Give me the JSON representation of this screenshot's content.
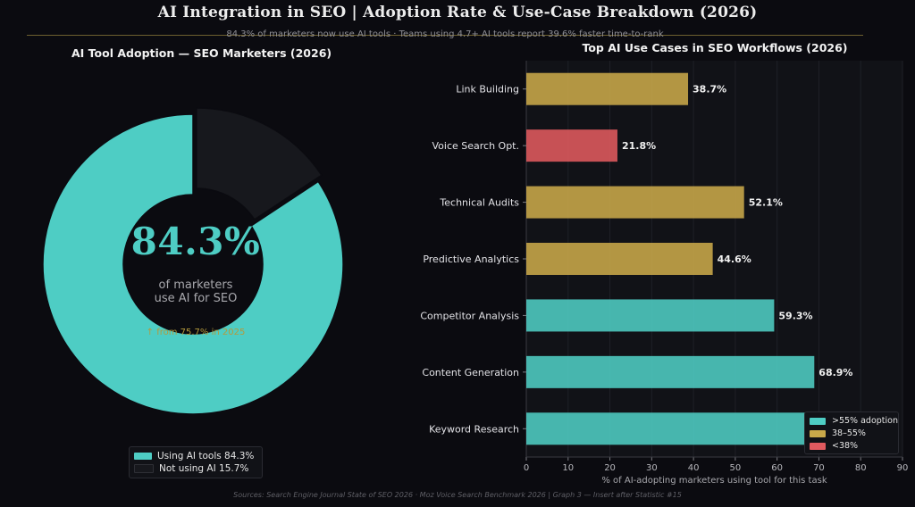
{
  "header": {
    "title": "AI Integration in SEO  |  Adoption Rate & Use-Case Breakdown  (2026)",
    "subtitle": "84.3% of marketers now use AI tools  ·  Teams using 4.7+ AI tools report 39.6% faster time-to-rank"
  },
  "donut": {
    "title": "AI Tool Adoption — SEO Marketers (2026)",
    "center_value": "84.3%",
    "center_line1": "of marketers",
    "center_line2": "use AI for SEO",
    "center_note": "↑ from 75.7% in 2025",
    "legend": [
      {
        "label": "Using AI tools  84.3%",
        "color": "#4ecdc4"
      },
      {
        "label": "Not using AI  15.7%",
        "color": "#17181d"
      }
    ]
  },
  "bars": {
    "title": "Top AI Use Cases in SEO Workflows  (2026)",
    "xlabel": "% of AI-adopting marketers using tool for this task",
    "legend": [
      {
        "label": ">55% adoption",
        "color": "#4ecdc4"
      },
      {
        "label": "38–55%",
        "color": "#c9a94a"
      },
      {
        "label": "<38%",
        "color": "#e05a5f"
      }
    ]
  },
  "chart_data": [
    {
      "type": "pie",
      "title": "AI Tool Adoption — SEO Marketers (2026)",
      "labels": [
        "Using AI tools",
        "Not using AI"
      ],
      "values": [
        84.3,
        15.7
      ],
      "colors": [
        "#4ecdc4",
        "#17181d"
      ],
      "donut": true,
      "exploded": "Not using AI"
    },
    {
      "type": "bar",
      "orientation": "horizontal",
      "title": "Top AI Use Cases in SEO Workflows  (2026)",
      "xlabel": "% of AI-adopting marketers using tool for this task",
      "categories": [
        "Keyword Research",
        "Content Generation",
        "Competitor Analysis",
        "Predictive Analytics",
        "Technical Audits",
        "Voice Search Opt.",
        "Link Building"
      ],
      "values": [
        71.2,
        68.9,
        59.3,
        44.6,
        52.1,
        21.8,
        38.7
      ],
      "value_labels": [
        "",
        "68.9%",
        "59.3%",
        "44.6%",
        "52.1%",
        "21.8%",
        "38.7%"
      ],
      "colors": [
        "#4ecdc4",
        "#4ecdc4",
        "#4ecdc4",
        "#c9a94a",
        "#c9a94a",
        "#e05a5f",
        "#c9a94a"
      ],
      "xlim": [
        0,
        90
      ],
      "xticks": [
        0,
        10,
        20,
        30,
        40,
        50,
        60,
        70,
        80,
        90
      ],
      "grid": "vertical",
      "legend_position": "lower-right"
    }
  ],
  "footer": "Sources: Search Engine Journal State of SEO 2026 · Moz Voice Search Benchmark 2026  |  Graph 3 — Insert after Statistic #15"
}
